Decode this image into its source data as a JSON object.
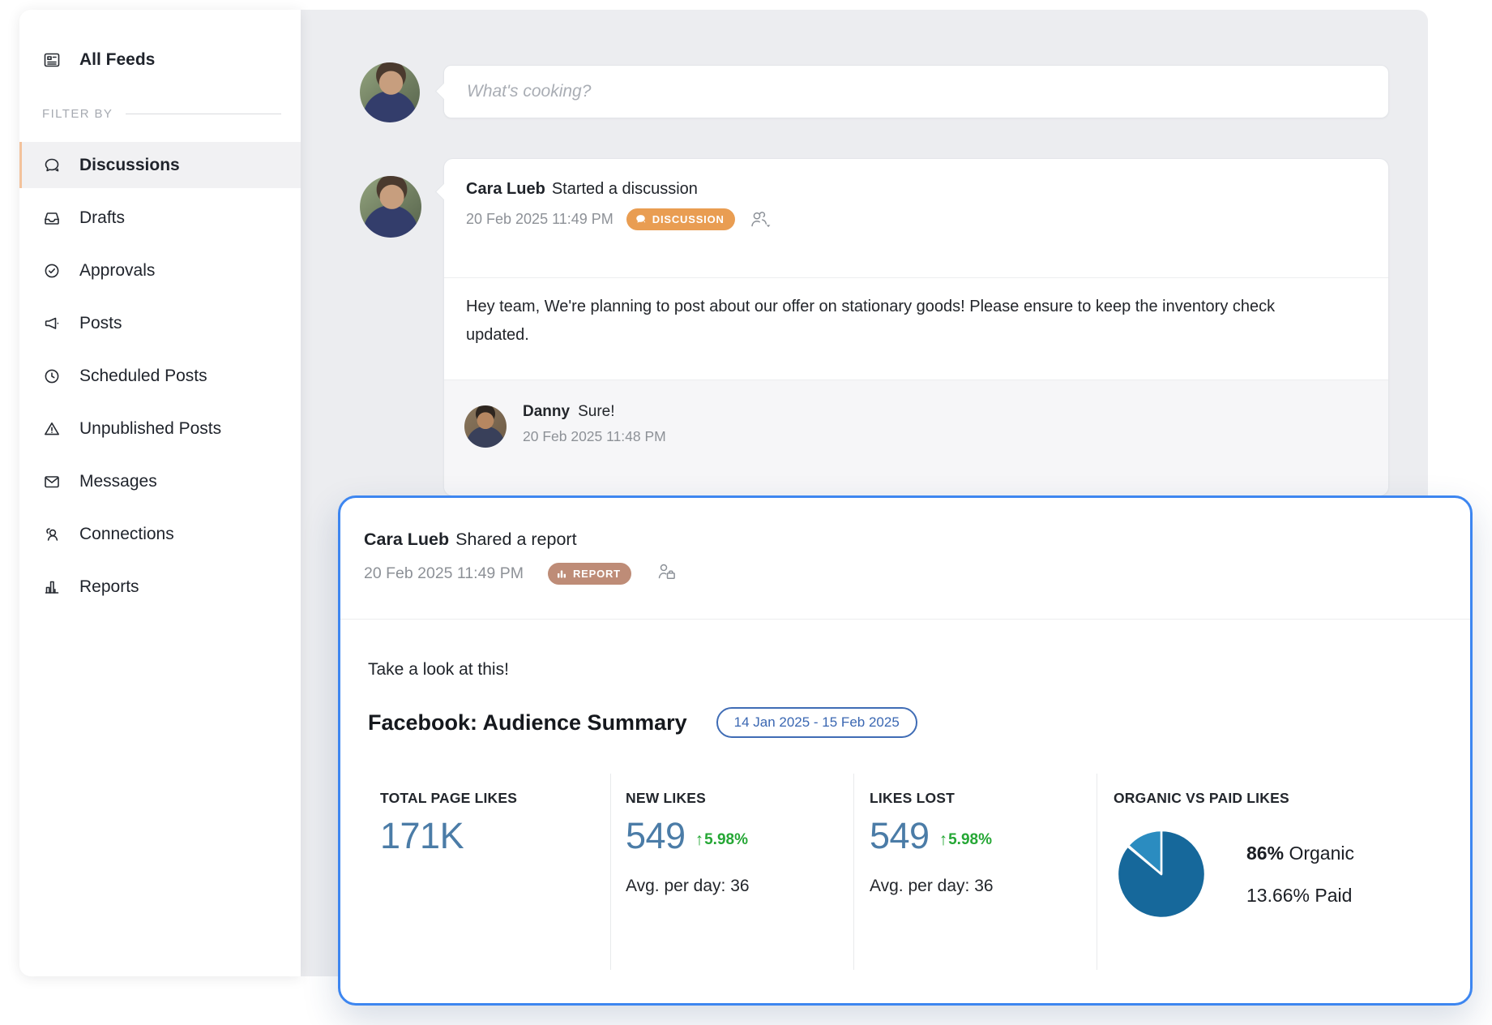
{
  "colors": {
    "accent_blue": "#3D86F0",
    "stat_blue": "#4B7CA7",
    "positive_green": "#25A735",
    "discussion_badge": "#E99D52",
    "report_badge": "#BE8C77",
    "date_pill_blue": "#3A67B2",
    "pie_organic": "#16689B",
    "pie_paid": "#2B8CC0",
    "sidebar_active_accent": "#F3C29B"
  },
  "sidebar": {
    "all_feeds_label": "All Feeds",
    "filter_by_label": "FILTER BY",
    "items": [
      {
        "label": "Discussions",
        "icon": "discussions-icon",
        "active": true
      },
      {
        "label": "Drafts",
        "icon": "drafts-icon",
        "active": false
      },
      {
        "label": "Approvals",
        "icon": "approvals-icon",
        "active": false
      },
      {
        "label": "Posts",
        "icon": "posts-icon",
        "active": false
      },
      {
        "label": "Scheduled Posts",
        "icon": "scheduled-posts-icon",
        "active": false
      },
      {
        "label": "Unpublished Posts",
        "icon": "unpublished-posts-icon",
        "active": false
      },
      {
        "label": "Messages",
        "icon": "messages-icon",
        "active": false
      },
      {
        "label": "Connections",
        "icon": "connections-icon",
        "active": false
      },
      {
        "label": "Reports",
        "icon": "reports-icon",
        "active": false
      }
    ]
  },
  "composer": {
    "placeholder": "What's cooking?"
  },
  "discussion": {
    "author": "Cara Lueb",
    "action": "Started a discussion",
    "timestamp": "20 Feb 2025 11:49 PM",
    "badge_label": "DISCUSSION",
    "body": "Hey team, We're planning to post about our offer on stationary goods! Please ensure to keep the inventory check updated.",
    "reply": {
      "author": "Danny",
      "text": "Sure!",
      "timestamp": "20 Feb 2025 11:48 PM"
    }
  },
  "report": {
    "author": "Cara Lueb",
    "action": "Shared a report",
    "timestamp": "20 Feb 2025 11:49 PM",
    "badge_label": "REPORT",
    "intro": "Take a look at this!",
    "title": "Facebook: Audience Summary",
    "date_range": "14 Jan 2025 - 15 Feb 2025",
    "up_arrow": "↑",
    "stats": [
      {
        "label": "TOTAL PAGE LIKES",
        "value": "171K"
      },
      {
        "label": "NEW LIKES",
        "value": "549",
        "delta": "5.98%",
        "avg": "Avg. per day: 36"
      },
      {
        "label": "LIKES LOST",
        "value": "549",
        "delta": "5.98%",
        "avg": "Avg. per day: 36"
      },
      {
        "label": "ORGANIC VS PAID LIKES",
        "organic": "86%",
        "organic_label": "Organic",
        "paid": "13.66%",
        "paid_label": "Paid"
      }
    ]
  },
  "chart_data": {
    "type": "pie",
    "title": "ORGANIC VS PAID LIKES",
    "labels": [
      "Organic",
      "Paid"
    ],
    "values": [
      86,
      13.66
    ],
    "colors": [
      "#16689B",
      "#2B8CC0"
    ],
    "legend_position": "right"
  }
}
